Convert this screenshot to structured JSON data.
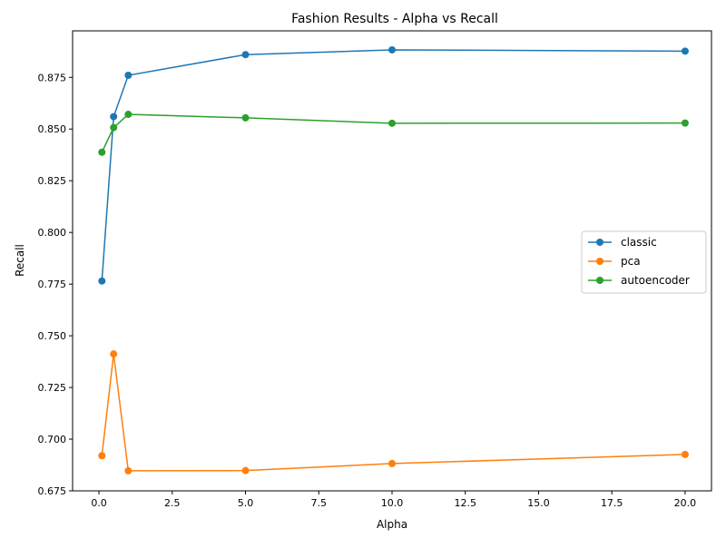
{
  "chart_data": {
    "type": "line",
    "title": "Fashion Results - Alpha vs Recall",
    "xlabel": "Alpha",
    "ylabel": "Recall",
    "xlim": [
      -0.9,
      20.9
    ],
    "ylim": [
      0.675,
      0.8975
    ],
    "x_ticks": [
      0.0,
      2.5,
      5.0,
      7.5,
      10.0,
      12.5,
      15.0,
      17.5,
      20.0
    ],
    "x_tick_labels": [
      "0.0",
      "2.5",
      "5.0",
      "7.5",
      "10.0",
      "12.5",
      "15.0",
      "17.5",
      "20.0"
    ],
    "y_ticks": [
      0.675,
      0.7,
      0.725,
      0.75,
      0.775,
      0.8,
      0.825,
      0.85,
      0.875
    ],
    "y_tick_labels": [
      "0.675",
      "0.700",
      "0.725",
      "0.750",
      "0.775",
      "0.800",
      "0.825",
      "0.850",
      "0.875"
    ],
    "grid": false,
    "legend_position": "center-right",
    "x": [
      0.1,
      0.5,
      1.0,
      5.0,
      10.0,
      20.0
    ],
    "series": [
      {
        "name": "classic",
        "color": "#1f77b4",
        "values": [
          0.7765,
          0.856,
          0.876,
          0.886,
          0.8883,
          0.8877
        ]
      },
      {
        "name": "pca",
        "color": "#ff7f0e",
        "values": [
          0.692,
          0.7412,
          0.6847,
          0.6848,
          0.6882,
          0.6926
        ]
      },
      {
        "name": "autoencoder",
        "color": "#2ca02c",
        "values": [
          0.8388,
          0.8507,
          0.8571,
          0.8554,
          0.8528,
          0.8529
        ]
      }
    ]
  }
}
